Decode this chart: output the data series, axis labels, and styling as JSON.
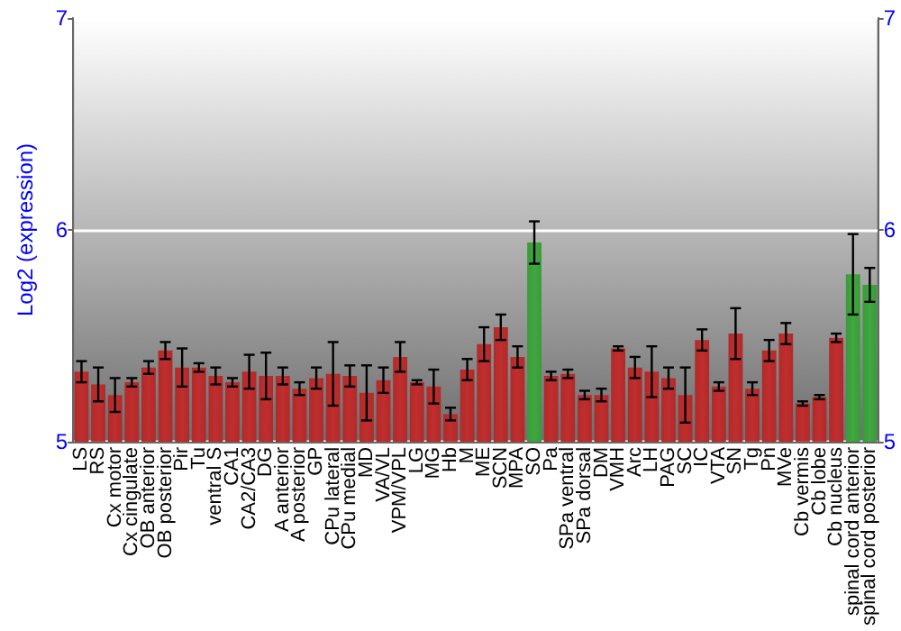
{
  "chart_data": {
    "type": "bar",
    "ylabel": "Log2 (expression)",
    "categories": [
      "LS",
      "RS",
      "Cx motor",
      "Cx cingulate",
      "OB anterior",
      "OB posterior",
      "Pir",
      "Tu",
      "ventral S",
      "CA1",
      "CA2/CA3",
      "DG",
      "A anterior",
      "A posterior",
      "GP",
      "CPu lateral",
      "CPu medial",
      "MD",
      "VA/VL",
      "VPM/VPL",
      "LG",
      "MG",
      "Hb",
      "M",
      "ME",
      "SCN",
      "MPA",
      "SO",
      "Pa",
      "SPa ventral",
      "SPa dorsal",
      "DM",
      "VMH",
      "Arc",
      "LH",
      "PAG",
      "SC",
      "IC",
      "VTA",
      "SN",
      "Tg",
      "Pn",
      "MVe",
      "Cb vermis",
      "Cb lobe",
      "Cb nucleus",
      "spinal cord anterior",
      "spinal cord posterior"
    ],
    "values": [
      5.33,
      5.27,
      5.22,
      5.28,
      5.35,
      5.43,
      5.35,
      5.35,
      5.31,
      5.28,
      5.33,
      5.31,
      5.31,
      5.25,
      5.3,
      5.32,
      5.31,
      5.23,
      5.29,
      5.4,
      5.28,
      5.26,
      5.13,
      5.34,
      5.46,
      5.54,
      5.4,
      5.94,
      5.31,
      5.32,
      5.22,
      5.22,
      5.44,
      5.35,
      5.33,
      5.3,
      5.22,
      5.48,
      5.26,
      5.51,
      5.25,
      5.43,
      5.51,
      5.18,
      5.21,
      5.49,
      5.79,
      5.74
    ],
    "errors": [
      0.05,
      0.08,
      0.08,
      0.02,
      0.03,
      0.04,
      0.09,
      0.02,
      0.04,
      0.02,
      0.08,
      0.11,
      0.04,
      0.03,
      0.05,
      0.15,
      0.05,
      0.13,
      0.06,
      0.07,
      0.01,
      0.08,
      0.03,
      0.05,
      0.08,
      0.06,
      0.05,
      0.1,
      0.02,
      0.02,
      0.02,
      0.03,
      0.01,
      0.05,
      0.12,
      0.05,
      0.13,
      0.05,
      0.02,
      0.12,
      0.03,
      0.05,
      0.05,
      0.01,
      0.01,
      0.02,
      0.19,
      0.08
    ],
    "colors": [
      "#b02a2a",
      "#b02a2a",
      "#b02a2a",
      "#b02a2a",
      "#b02a2a",
      "#b02a2a",
      "#b02a2a",
      "#b02a2a",
      "#b02a2a",
      "#b02a2a",
      "#b02a2a",
      "#b02a2a",
      "#b02a2a",
      "#b02a2a",
      "#b02a2a",
      "#b02a2a",
      "#b02a2a",
      "#b02a2a",
      "#b02a2a",
      "#b02a2a",
      "#b02a2a",
      "#b02a2a",
      "#b02a2a",
      "#b02a2a",
      "#b02a2a",
      "#b02a2a",
      "#b02a2a",
      "#3a9a3a",
      "#b02a2a",
      "#b02a2a",
      "#b02a2a",
      "#b02a2a",
      "#b02a2a",
      "#b02a2a",
      "#b02a2a",
      "#b02a2a",
      "#b02a2a",
      "#b02a2a",
      "#b02a2a",
      "#b02a2a",
      "#b02a2a",
      "#b02a2a",
      "#b02a2a",
      "#b02a2a",
      "#b02a2a",
      "#b02a2a",
      "#3a9a3a",
      "#3a9a3a"
    ],
    "ylim": [
      5,
      7
    ],
    "yticks": [
      5,
      6,
      7
    ],
    "y2lim": [
      5,
      7
    ],
    "y2ticks": [
      5,
      6,
      7
    ],
    "grid": "y"
  }
}
